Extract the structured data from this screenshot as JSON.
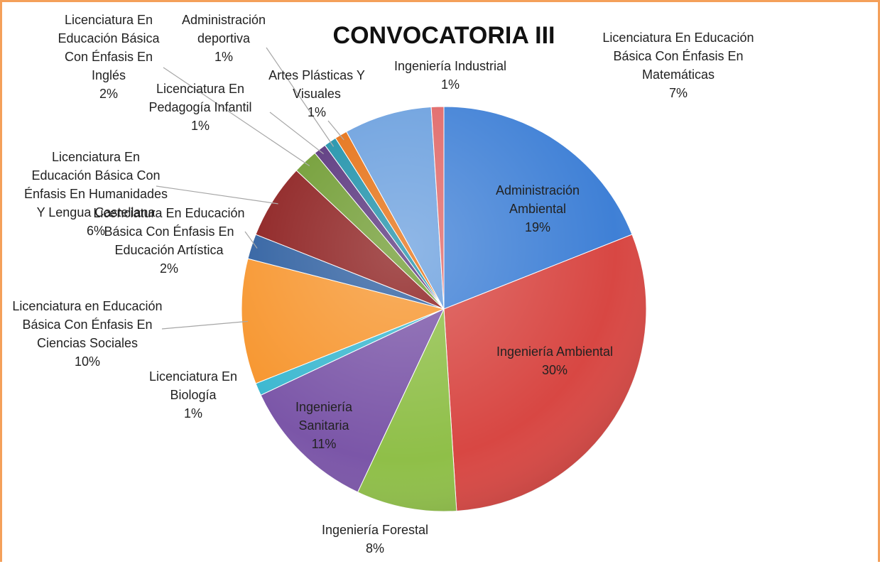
{
  "chart_data": {
    "type": "pie",
    "title": "CONVOCATORIA III",
    "categories": [
      "Administración Ambiental",
      "Ingeniería Ambiental",
      "Ingeniería Forestal",
      "Ingeniería Sanitaria",
      "Licenciatura En Biología",
      "Licenciatura en Educación Básica Con Énfasis En Ciencias Sociales",
      "Licenciatura En Educación Básica Con Énfasis En Educación Artística",
      "Licenciatura En Educación Básica Con Énfasis En Humanidades Y Lengua Castellana",
      "Licenciatura En Educación Básica Con Énfasis En Inglés",
      "Licenciatura En Pedagogía Infantil",
      "Administración deportiva",
      "Artes Plásticas Y Visuales",
      "Licenciatura En Educación Básica Con Énfasis En Matemáticas",
      "Ingeniería Industrial"
    ],
    "values": [
      19,
      30,
      8,
      11,
      1,
      10,
      2,
      6,
      2,
      1,
      1,
      1,
      7,
      1
    ],
    "value_labels": [
      "19%",
      "30%",
      "8%",
      "11%",
      "1%",
      "10%",
      "2%",
      "6%",
      "2%",
      "1%",
      "1%",
      "1%",
      "7%",
      "1%"
    ],
    "colors": [
      "#3f80d6",
      "#d84743",
      "#8fbf48",
      "#7b56a8",
      "#3cb8d0",
      "#f7962f",
      "#2e5fa0",
      "#8b1c1c",
      "#6d9a2e",
      "#55307a",
      "#1a8fa8",
      "#e56e10",
      "#6a9fde",
      "#e06666"
    ]
  }
}
